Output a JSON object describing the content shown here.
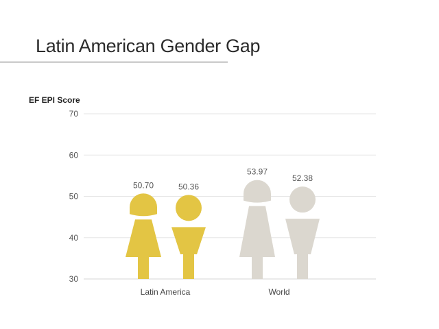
{
  "chart_data": {
    "type": "bar",
    "title": "Latin American Gender Gap",
    "ylabel": "EF EPI Score",
    "xlabel": "",
    "ylim": [
      30,
      70
    ],
    "yticks": [
      30,
      40,
      50,
      60,
      70
    ],
    "grid": true,
    "categories": [
      "Latin America",
      "World"
    ],
    "series": [
      {
        "values": [
          50.7,
          53.97
        ]
      },
      {
        "values": [
          50.36,
          52.38
        ]
      }
    ],
    "value_labels": [
      [
        "50.70",
        "50.36"
      ],
      [
        "53.97",
        "52.38"
      ]
    ],
    "colors": {
      "latin_america": "#e3c544",
      "world": "#dbd7cf"
    },
    "icons": [
      "woman-figure-icon",
      "man-figure-icon"
    ]
  }
}
